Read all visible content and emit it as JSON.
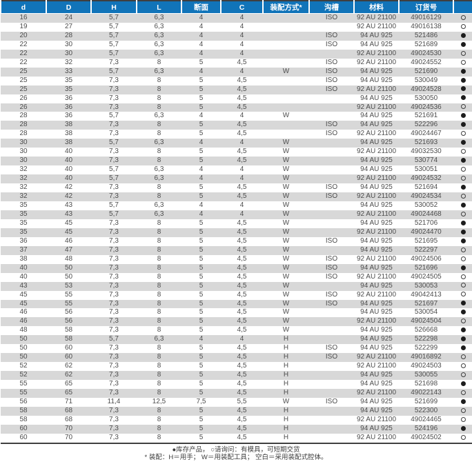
{
  "colors": {
    "header_bg": "#1174b9",
    "row_stripe": "#d8d8d8",
    "table_border": "#3f3f3f",
    "data_text": "#4d4d4d"
  },
  "table": {
    "columns": [
      "d",
      "D",
      "H",
      "L",
      "断面",
      "C",
      "装配方式*",
      "沟槽",
      "材料",
      "订货号",
      ""
    ],
    "rows": [
      [
        "16",
        "24",
        "5,7",
        "6,3",
        "4",
        "4",
        "",
        "ISO",
        "92 AU 21100",
        "49016129",
        "○"
      ],
      [
        "19",
        "27",
        "5,7",
        "6,3",
        "4",
        "4",
        "",
        "",
        "92 AU 21100",
        "49016138",
        "○"
      ],
      [
        "20",
        "28",
        "5,7",
        "6,3",
        "4",
        "4",
        "",
        "ISO",
        "94 AU 925",
        "521486",
        "●"
      ],
      [
        "22",
        "30",
        "5,7",
        "6,3",
        "4",
        "4",
        "",
        "ISO",
        "94 AU 925",
        "521689",
        "●"
      ],
      [
        "22",
        "30",
        "5,7",
        "6,3",
        "4",
        "4",
        "",
        "",
        "92 AU 21100",
        "49024530",
        "○"
      ],
      [
        "22",
        "32",
        "7,3",
        "8",
        "5",
        "4,5",
        "",
        "ISO",
        "92 AU 21100",
        "49024552",
        "○"
      ],
      [
        "25",
        "33",
        "5,7",
        "6,3",
        "4",
        "4",
        "W",
        "ISO",
        "94 AU 925",
        "521690",
        "●"
      ],
      [
        "25",
        "35",
        "7,3",
        "8",
        "5",
        "4,5",
        "",
        "ISO",
        "94 AU 925",
        "530049",
        "●"
      ],
      [
        "25",
        "35",
        "7,3",
        "8",
        "5",
        "4,5",
        "",
        "ISO",
        "92 AU 21100",
        "49024528",
        "●"
      ],
      [
        "26",
        "36",
        "7,3",
        "8",
        "5",
        "4,5",
        "",
        "",
        "94 AU 925",
        "530050",
        "●"
      ],
      [
        "26",
        "36",
        "7,3",
        "8",
        "5",
        "4,5",
        "",
        "",
        "92 AU 21100",
        "49024536",
        "○"
      ],
      [
        "28",
        "36",
        "5,7",
        "6,3",
        "4",
        "4",
        "W",
        "",
        "94 AU 925",
        "521691",
        "●"
      ],
      [
        "28",
        "38",
        "7,3",
        "8",
        "5",
        "4,5",
        "",
        "ISO",
        "94 AU 925",
        "522296",
        "●"
      ],
      [
        "28",
        "38",
        "7,3",
        "8",
        "5",
        "4,5",
        "",
        "ISO",
        "92 AU 21100",
        "49024467",
        "○"
      ],
      [
        "30",
        "38",
        "5,7",
        "6,3",
        "4",
        "4",
        "W",
        "",
        "94 AU 925",
        "521693",
        "●"
      ],
      [
        "30",
        "40",
        "7,3",
        "8",
        "5",
        "4,5",
        "W",
        "",
        "92 AU 21100",
        "49032530",
        "○"
      ],
      [
        "30",
        "40",
        "7,3",
        "8",
        "5",
        "4,5",
        "W",
        "",
        "94 AU 925",
        "530774",
        "●"
      ],
      [
        "32",
        "40",
        "5,7",
        "6,3",
        "4",
        "4",
        "W",
        "",
        "94 AU 925",
        "530051",
        "○"
      ],
      [
        "32",
        "40",
        "5,7",
        "6,3",
        "4",
        "4",
        "W",
        "",
        "92 AU 21100",
        "49024532",
        "○"
      ],
      [
        "32",
        "42",
        "7,3",
        "8",
        "5",
        "4,5",
        "W",
        "ISO",
        "94 AU 925",
        "521694",
        "●"
      ],
      [
        "32",
        "42",
        "7,3",
        "8",
        "5",
        "4,5",
        "W",
        "ISO",
        "92 AU 21100",
        "49024534",
        "○"
      ],
      [
        "35",
        "43",
        "5,7",
        "6,3",
        "4",
        "4",
        "W",
        "",
        "94 AU 925",
        "530052",
        "●"
      ],
      [
        "35",
        "43",
        "5,7",
        "6,3",
        "4",
        "4",
        "W",
        "",
        "92 AU 21100",
        "49024468",
        "○"
      ],
      [
        "35",
        "45",
        "7,3",
        "8",
        "5",
        "4,5",
        "W",
        "",
        "94 AU 925",
        "521706",
        "●"
      ],
      [
        "35",
        "45",
        "7,3",
        "8",
        "5",
        "4,5",
        "W",
        "",
        "92 AU 21100",
        "49024470",
        "●"
      ],
      [
        "36",
        "46",
        "7,3",
        "8",
        "5",
        "4,5",
        "W",
        "ISO",
        "94 AU 925",
        "521695",
        "●"
      ],
      [
        "37",
        "47",
        "7,3",
        "8",
        "5",
        "4,5",
        "W",
        "",
        "94 AU 925",
        "522297",
        "○"
      ],
      [
        "38",
        "48",
        "7,3",
        "8",
        "5",
        "4,5",
        "W",
        "ISO",
        "92 AU 21100",
        "49024506",
        "○"
      ],
      [
        "40",
        "50",
        "7,3",
        "8",
        "5",
        "4,5",
        "W",
        "ISO",
        "94 AU 925",
        "521696",
        "●"
      ],
      [
        "40",
        "50",
        "7,3",
        "8",
        "5",
        "4,5",
        "W",
        "ISO",
        "92 AU 21100",
        "49024505",
        "○"
      ],
      [
        "43",
        "53",
        "7,3",
        "8",
        "5",
        "4,5",
        "W",
        "",
        "94 AU 925",
        "530053",
        "○"
      ],
      [
        "45",
        "55",
        "7,3",
        "8",
        "5",
        "4,5",
        "W",
        "ISO",
        "92 AU 21100",
        "49042413",
        "○"
      ],
      [
        "45",
        "55",
        "7,3",
        "8",
        "5",
        "4,5",
        "W",
        "ISO",
        "94 AU 925",
        "521697",
        "●"
      ],
      [
        "46",
        "56",
        "7,3",
        "8",
        "5",
        "4,5",
        "W",
        "",
        "94 AU 925",
        "530054",
        "●"
      ],
      [
        "46",
        "56",
        "7,3",
        "8",
        "5",
        "4,5",
        "W",
        "",
        "92 AU 21100",
        "49024504",
        "○"
      ],
      [
        "48",
        "58",
        "7,3",
        "8",
        "5",
        "4,5",
        "W",
        "",
        "94 AU 925",
        "526668",
        "●"
      ],
      [
        "50",
        "58",
        "5,7",
        "6,3",
        "4",
        "4",
        "H",
        "",
        "94 AU 925",
        "522298",
        "●"
      ],
      [
        "50",
        "60",
        "7,3",
        "8",
        "5",
        "4,5",
        "H",
        "ISO",
        "94 AU 925",
        "522299",
        "●"
      ],
      [
        "50",
        "60",
        "7,3",
        "8",
        "5",
        "4,5",
        "H",
        "ISO",
        "92 AU 21100",
        "49016892",
        "○"
      ],
      [
        "52",
        "62",
        "7,3",
        "8",
        "5",
        "4,5",
        "H",
        "",
        "92 AU 21100",
        "49024503",
        "○"
      ],
      [
        "52",
        "62",
        "7,3",
        "8",
        "5",
        "4,5",
        "H",
        "",
        "94 AU 925",
        "530055",
        "○"
      ],
      [
        "55",
        "65",
        "7,3",
        "8",
        "5",
        "4,5",
        "H",
        "",
        "94 AU 925",
        "521698",
        "●"
      ],
      [
        "55",
        "65",
        "7,3",
        "8",
        "5",
        "4,5",
        "H",
        "",
        "92 AU 21100",
        "49022143",
        "○"
      ],
      [
        "56",
        "71",
        "11,4",
        "12,5",
        "7,5",
        "5,5",
        "W",
        "ISO",
        "94 AU 925",
        "521699",
        "●"
      ],
      [
        "58",
        "68",
        "7,3",
        "8",
        "5",
        "4,5",
        "H",
        "",
        "94 AU 925",
        "522300",
        "○"
      ],
      [
        "58",
        "68",
        "7,3",
        "8",
        "5",
        "4,5",
        "H",
        "",
        "92 AU 21100",
        "49024465",
        "○"
      ],
      [
        "60",
        "70",
        "7,3",
        "8",
        "5",
        "4,5",
        "H",
        "",
        "94 AU 925",
        "524196",
        "●"
      ],
      [
        "60",
        "70",
        "7,3",
        "8",
        "5",
        "4,5",
        "H",
        "",
        "92 AU 21100",
        "49024502",
        "○"
      ]
    ]
  },
  "legend": {
    "line1": "●库存产品， ○请询问：有模具，可短期交货",
    "line2": "* 装配：H＝用手； W＝用装配工具； 空白＝采用装配式腔体。"
  }
}
